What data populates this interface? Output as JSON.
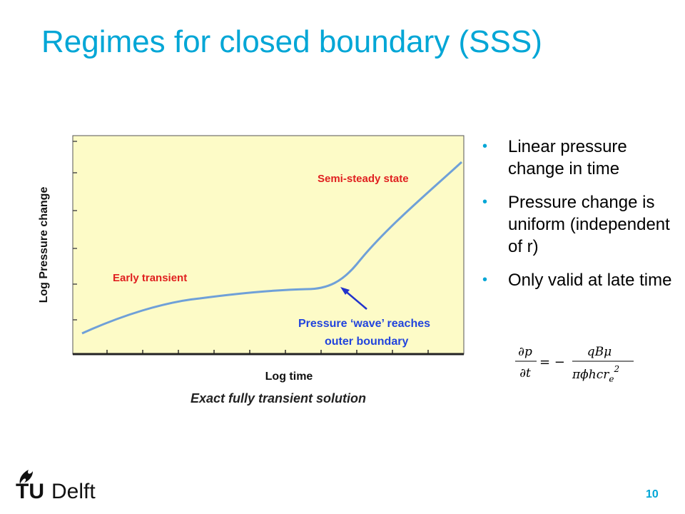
{
  "slide": {
    "title": "Regimes for closed boundary (SSS)",
    "page_number": "10",
    "accent_color": "#00a6d6"
  },
  "figure": {
    "ylabel": "Log Pressure change",
    "xlabel": "Log time",
    "caption": "Exact fully transient solution",
    "plot_bg": "#fdfbc7",
    "curve_color": "#6fa0d8",
    "annotations": {
      "early": "Early transient",
      "sss": "Semi-steady state",
      "wave_line1": "Pressure ‘wave’ reaches",
      "wave_line2": "outer boundary"
    }
  },
  "bullets": [
    {
      "text": "Linear pressure change in time"
    },
    {
      "text": "Pressure change is uniform (independent of r)"
    },
    {
      "text": "Only valid at late time"
    }
  ],
  "formula": {
    "lhs_num": "∂p",
    "lhs_den": "∂t",
    "equals": "= −",
    "rhs_num": "qBμ",
    "rhs_den": "πϕhcr",
    "rhs_den_sub": "e",
    "rhs_den_sup": "2"
  },
  "logo": {
    "text_tu": "TU",
    "text_delft": "Delft",
    "icon": "flame-icon"
  }
}
